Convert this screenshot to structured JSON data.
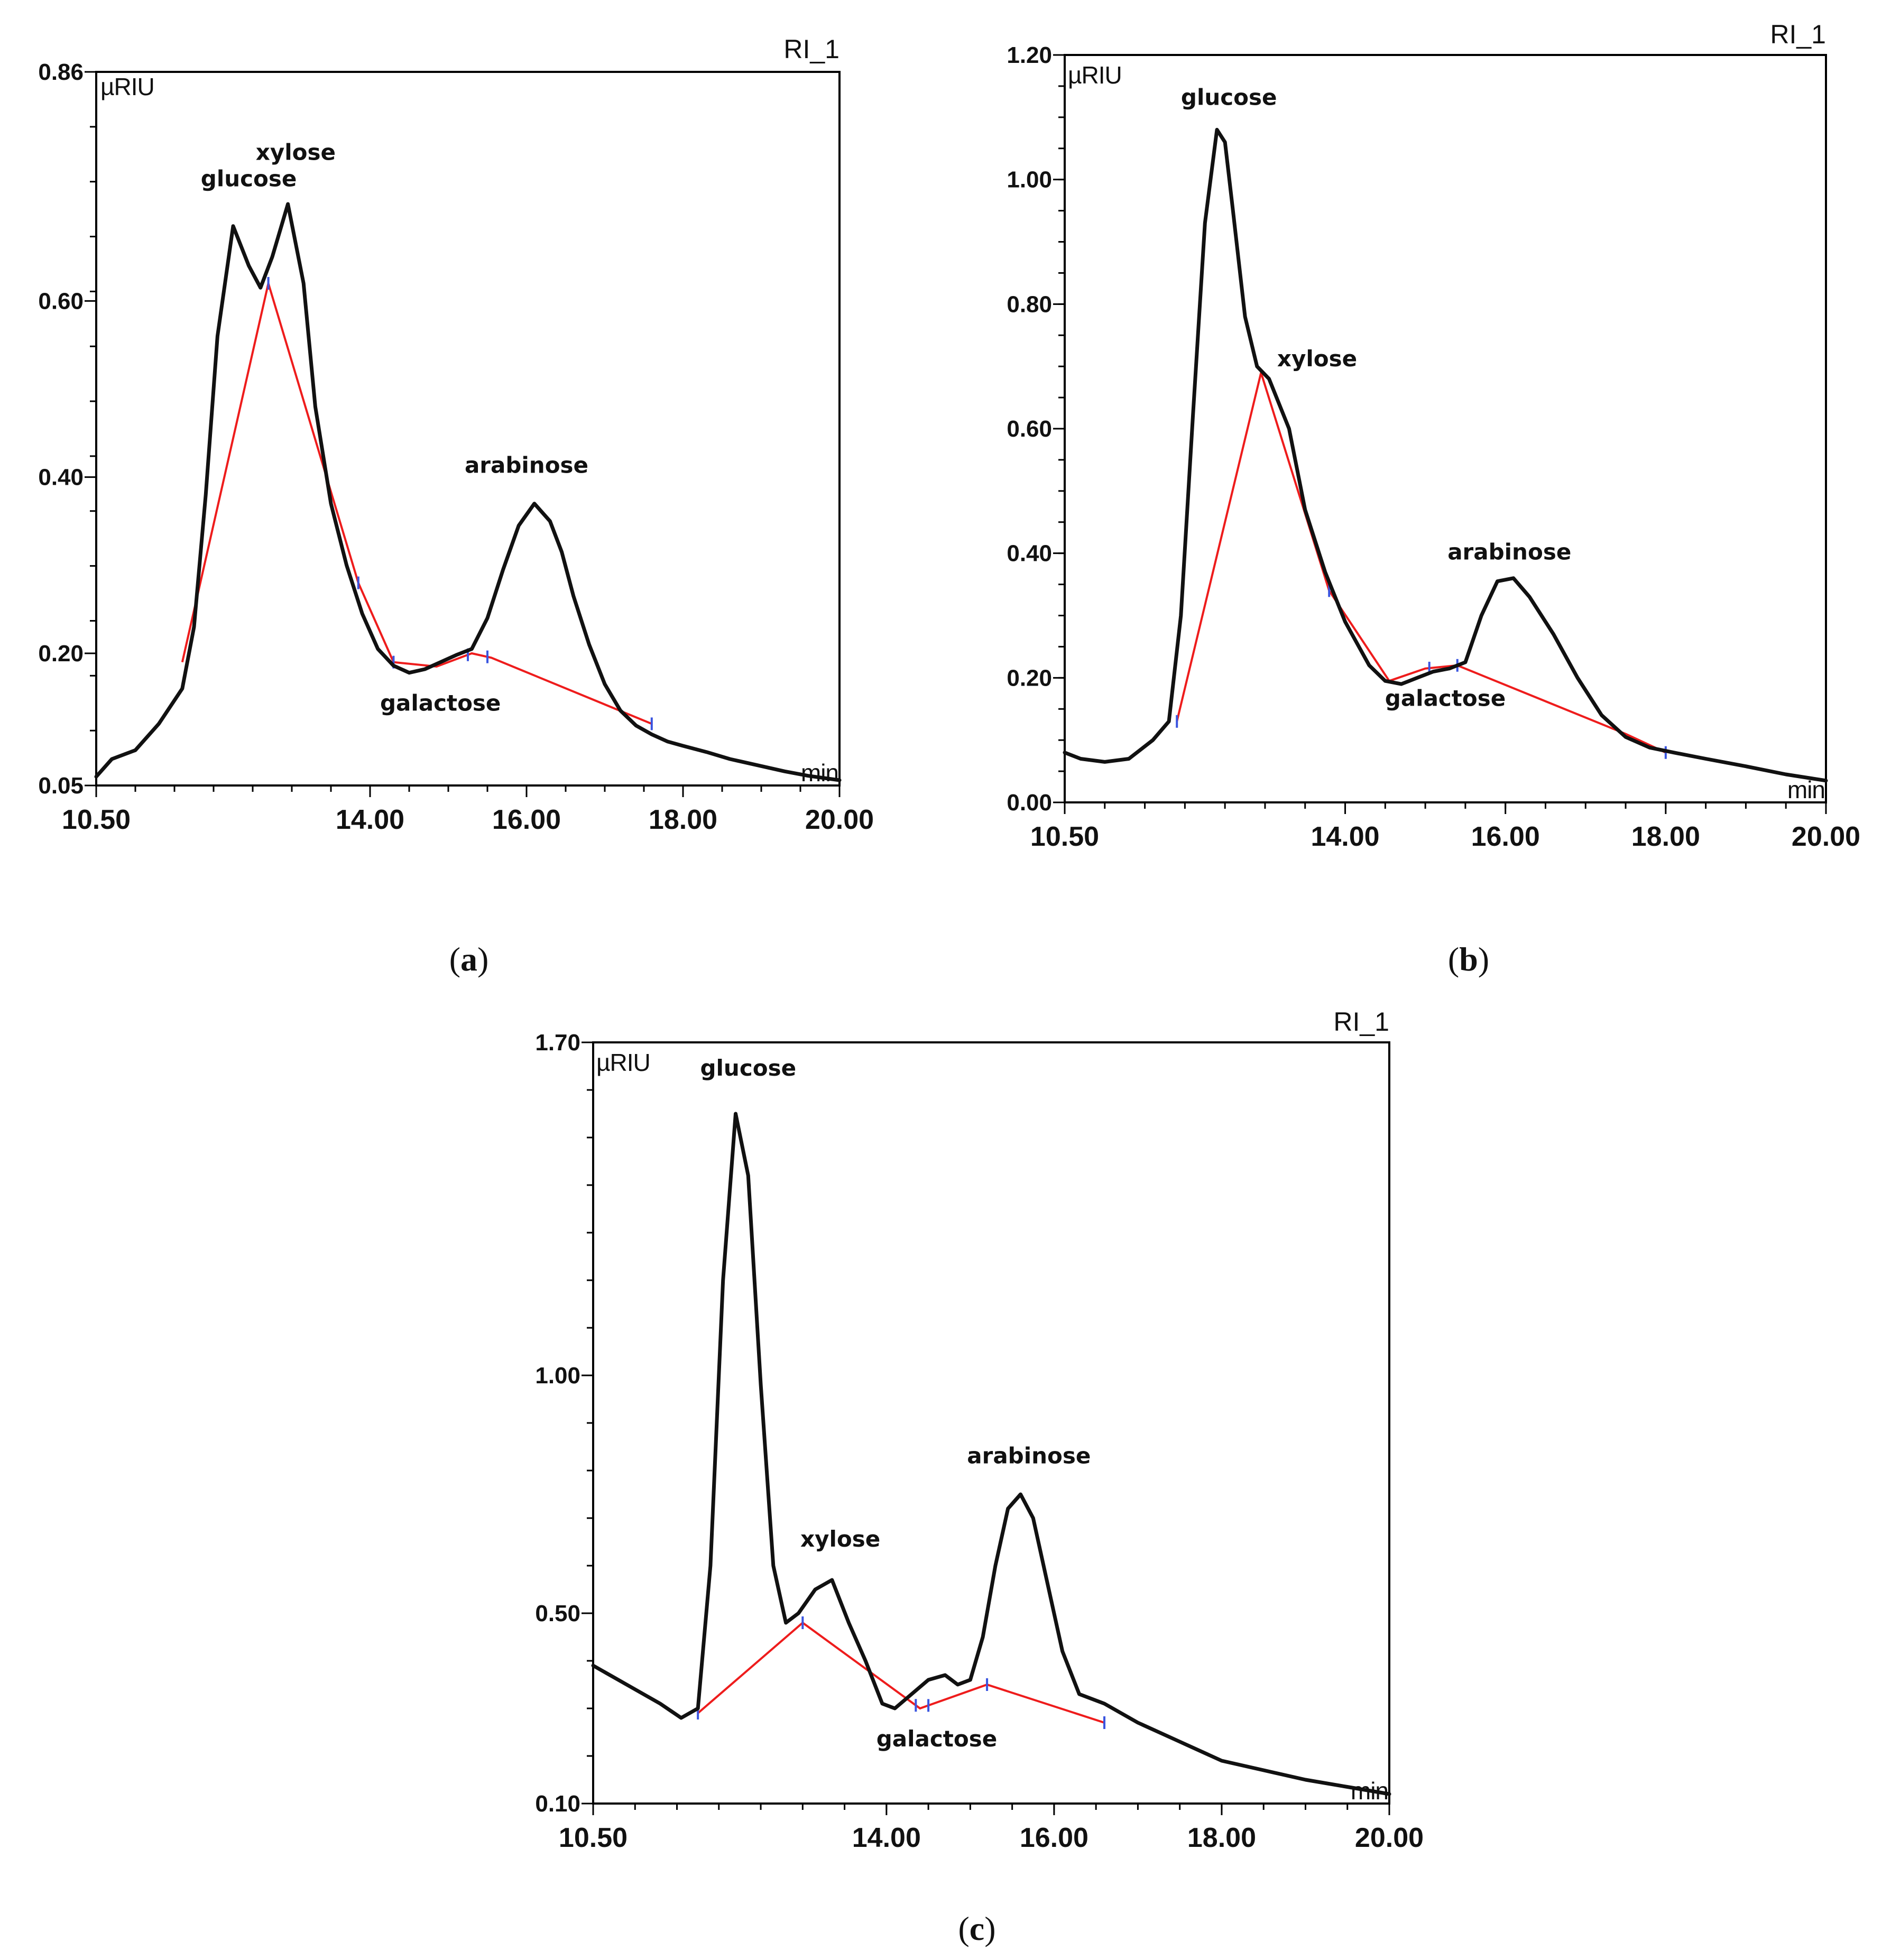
{
  "chart_data": [
    {
      "id": "a",
      "type": "line",
      "title": "",
      "series_label": "RI_1",
      "ylabel": "µRIU",
      "xlabel": "min",
      "caption": {
        "open": "(",
        "letter": "a",
        "close": ")"
      },
      "xlim": [
        10.5,
        20.0
      ],
      "ylim": [
        0.05,
        0.86
      ],
      "x_ticks": [
        "10.50",
        "14.00",
        "16.00",
        "18.00",
        "20.00"
      ],
      "y_ticks": [
        "0.05",
        "0.20",
        "0.40",
        "0.60",
        "0.86"
      ],
      "x_tick_values": [
        10.5,
        14.0,
        16.0,
        18.0,
        20.0
      ],
      "y_tick_values": [
        0.05,
        0.2,
        0.4,
        0.6,
        0.86
      ],
      "grid": false,
      "signal": {
        "x": [
          10.5,
          10.7,
          11.0,
          11.3,
          11.6,
          11.75,
          11.9,
          12.05,
          12.25,
          12.45,
          12.6,
          12.75,
          12.95,
          13.15,
          13.3,
          13.5,
          13.7,
          13.9,
          14.1,
          14.3,
          14.5,
          14.7,
          14.9,
          15.1,
          15.3,
          15.5,
          15.7,
          15.9,
          16.1,
          16.3,
          16.45,
          16.6,
          16.8,
          17.0,
          17.2,
          17.4,
          17.6,
          17.8,
          18.0,
          18.3,
          18.6,
          19.0,
          19.3,
          19.6,
          20.0
        ],
        "y": [
          0.06,
          0.08,
          0.09,
          0.12,
          0.16,
          0.23,
          0.38,
          0.56,
          0.685,
          0.64,
          0.615,
          0.65,
          0.71,
          0.62,
          0.48,
          0.37,
          0.3,
          0.245,
          0.205,
          0.186,
          0.178,
          0.182,
          0.19,
          0.198,
          0.205,
          0.24,
          0.295,
          0.345,
          0.37,
          0.35,
          0.315,
          0.265,
          0.21,
          0.165,
          0.135,
          0.118,
          0.108,
          0.1,
          0.095,
          0.088,
          0.08,
          0.072,
          0.066,
          0.061,
          0.056
        ]
      },
      "baseline": {
        "x": [
          11.6,
          12.7,
          13.85,
          14.3,
          14.85,
          15.3,
          15.55,
          17.6
        ],
        "y": [
          0.19,
          0.62,
          0.28,
          0.19,
          0.185,
          0.2,
          0.195,
          0.12
        ]
      },
      "markers_x": [
        12.7,
        13.85,
        14.3,
        15.25,
        15.5,
        17.6
      ],
      "peaks": [
        {
          "name": "glucose",
          "x": 12.45,
          "y": 0.73
        },
        {
          "name": "xylose",
          "x": 13.05,
          "y": 0.76
        },
        {
          "name": "galactose",
          "x": 14.9,
          "y": 0.135
        },
        {
          "name": "arabinose",
          "x": 16.0,
          "y": 0.405
        }
      ]
    },
    {
      "id": "b",
      "type": "line",
      "title": "",
      "series_label": "RI_1",
      "ylabel": "µRIU",
      "xlabel": "min",
      "caption": {
        "open": "(",
        "letter": "b",
        "close": ")"
      },
      "xlim": [
        10.5,
        20.0
      ],
      "ylim": [
        0.0,
        1.2
      ],
      "x_ticks": [
        "10.50",
        "14.00",
        "16.00",
        "18.00",
        "20.00"
      ],
      "y_ticks": [
        "0.00",
        "0.20",
        "0.40",
        "0.60",
        "0.80",
        "1.00",
        "1.20"
      ],
      "x_tick_values": [
        10.5,
        14.0,
        16.0,
        18.0,
        20.0
      ],
      "y_tick_values": [
        0.0,
        0.2,
        0.4,
        0.6,
        0.8,
        1.0,
        1.2
      ],
      "grid": false,
      "signal": {
        "x": [
          10.5,
          10.7,
          11.0,
          11.3,
          11.6,
          11.8,
          11.95,
          12.1,
          12.25,
          12.4,
          12.5,
          12.6,
          12.75,
          12.9,
          13.05,
          13.3,
          13.5,
          13.75,
          14.0,
          14.3,
          14.5,
          14.7,
          14.9,
          15.1,
          15.3,
          15.5,
          15.7,
          15.9,
          16.1,
          16.3,
          16.6,
          16.9,
          17.2,
          17.5,
          17.8,
          18.1,
          18.5,
          19.0,
          19.5,
          20.0
        ],
        "y": [
          0.08,
          0.07,
          0.065,
          0.07,
          0.1,
          0.13,
          0.3,
          0.62,
          0.93,
          1.08,
          1.06,
          0.95,
          0.78,
          0.7,
          0.68,
          0.6,
          0.47,
          0.37,
          0.29,
          0.22,
          0.195,
          0.19,
          0.2,
          0.21,
          0.215,
          0.225,
          0.3,
          0.355,
          0.36,
          0.33,
          0.27,
          0.2,
          0.14,
          0.105,
          0.088,
          0.08,
          0.07,
          0.058,
          0.045,
          0.035
        ]
      },
      "baseline": {
        "x": [
          11.9,
          12.95,
          13.8,
          14.55,
          15.0,
          15.4,
          17.5,
          18.0
        ],
        "y": [
          0.13,
          0.69,
          0.34,
          0.195,
          0.215,
          0.22,
          0.11,
          0.08
        ]
      },
      "markers_x": [
        11.9,
        13.8,
        15.05,
        15.4,
        18.0
      ],
      "peaks": [
        {
          "name": "glucose",
          "x": 12.55,
          "y": 1.12
        },
        {
          "name": "xylose",
          "x": 13.65,
          "y": 0.7
        },
        {
          "name": "galactose",
          "x": 15.25,
          "y": 0.155
        },
        {
          "name": "arabinose",
          "x": 16.05,
          "y": 0.39
        }
      ]
    },
    {
      "id": "c",
      "type": "line",
      "title": "",
      "series_label": "RI_1",
      "ylabel": "µRIU",
      "xlabel": "min",
      "caption": {
        "open": "(",
        "letter": "c",
        "close": ")"
      },
      "xlim": [
        10.5,
        20.0
      ],
      "ylim": [
        0.1,
        1.7
      ],
      "x_ticks": [
        "10.50",
        "14.00",
        "16.00",
        "18.00",
        "20.00"
      ],
      "y_ticks": [
        "0.10",
        "0.50",
        "1.00",
        "1.70"
      ],
      "x_tick_values": [
        10.5,
        14.0,
        16.0,
        18.0,
        20.0
      ],
      "y_tick_values": [
        0.1,
        0.5,
        1.0,
        1.7
      ],
      "grid": false,
      "signal": {
        "x": [
          10.5,
          10.9,
          11.3,
          11.55,
          11.75,
          11.9,
          12.05,
          12.2,
          12.35,
          12.5,
          12.65,
          12.8,
          12.95,
          13.15,
          13.35,
          13.55,
          13.75,
          13.95,
          14.1,
          14.3,
          14.5,
          14.7,
          14.85,
          15.0,
          15.15,
          15.3,
          15.45,
          15.6,
          15.75,
          15.9,
          16.1,
          16.3,
          16.6,
          17.0,
          17.5,
          18.0,
          18.5,
          19.0,
          19.5,
          20.0
        ],
        "y": [
          0.39,
          0.35,
          0.31,
          0.28,
          0.3,
          0.6,
          1.2,
          1.55,
          1.42,
          0.98,
          0.6,
          0.48,
          0.5,
          0.55,
          0.57,
          0.48,
          0.4,
          0.31,
          0.3,
          0.33,
          0.36,
          0.37,
          0.35,
          0.36,
          0.45,
          0.6,
          0.72,
          0.75,
          0.7,
          0.58,
          0.42,
          0.33,
          0.31,
          0.27,
          0.23,
          0.19,
          0.17,
          0.15,
          0.135,
          0.12
        ]
      },
      "baseline": {
        "x": [
          11.75,
          13.0,
          14.4,
          15.2,
          16.6
        ],
        "y": [
          0.29,
          0.48,
          0.3,
          0.35,
          0.27
        ]
      },
      "markers_x": [
        11.75,
        13.0,
        14.35,
        14.5,
        15.2,
        16.6
      ],
      "peaks": [
        {
          "name": "glucose",
          "x": 12.35,
          "y": 1.63
        },
        {
          "name": "xylose",
          "x": 13.45,
          "y": 0.64
        },
        {
          "name": "galactose",
          "x": 14.6,
          "y": 0.22
        },
        {
          "name": "arabinose",
          "x": 15.7,
          "y": 0.815
        }
      ]
    }
  ]
}
